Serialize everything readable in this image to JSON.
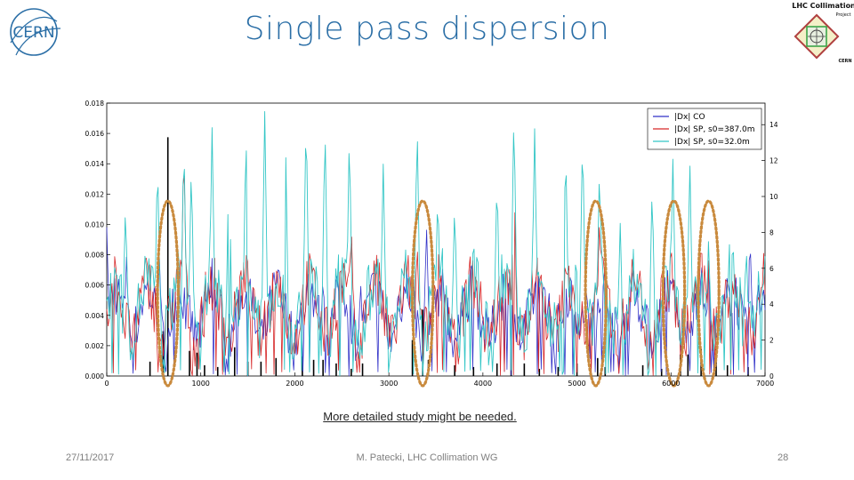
{
  "slide": {
    "title": "Single pass dispersion",
    "note": "More detailed study might be needed.",
    "footer_date": "27/11/2017",
    "footer_center": "M. Patecki, LHC Collimation WG",
    "page_number": "28",
    "logo_left_text": "CERN",
    "logo_right_line1": "LHC Collimation",
    "logo_right_line2": "Project",
    "logo_right_line3": "CERN"
  },
  "colors": {
    "title": "#2a6ea6",
    "co": "#3232c8",
    "sp387": "#d62728",
    "sp32": "#33c6c6",
    "bars": "#000000",
    "ellipse": "#c98a3d"
  },
  "chart_data": {
    "type": "line",
    "x_ticks": [
      0,
      1000,
      2000,
      3000,
      4000,
      5000,
      6000,
      7000
    ],
    "y_left_ticks": [
      "0.000",
      "0.002",
      "0.004",
      "0.006",
      "0.008",
      "0.010",
      "0.012",
      "0.014",
      "0.016",
      "0.018"
    ],
    "y_right_ticks": [
      "0",
      "2",
      "4",
      "6",
      "8",
      "10",
      "12",
      "14"
    ],
    "xlim": [
      0,
      7000
    ],
    "ylim_left": [
      0,
      0.018
    ],
    "ylim_right": [
      0,
      15.2
    ],
    "legend_position": "top-right",
    "legend": [
      "|Dx| CO",
      "|Dx| SP, s0=387.0m",
      "|Dx| SP, s0=32.0m"
    ],
    "peaks_sp32": [
      [
        200,
        9.5
      ],
      [
        540,
        12.2
      ],
      [
        820,
        13.2
      ],
      [
        900,
        11.7
      ],
      [
        1120,
        13.6
      ],
      [
        1300,
        12.6
      ],
      [
        1480,
        13.8
      ],
      [
        1680,
        14.6
      ],
      [
        1900,
        13.4
      ],
      [
        2120,
        14.7
      ],
      [
        2320,
        14.1
      ],
      [
        2580,
        13.6
      ],
      [
        2940,
        11.7
      ],
      [
        3300,
        14.2
      ],
      [
        3520,
        10.5
      ],
      [
        3700,
        9.5
      ],
      [
        3900,
        8.2
      ],
      [
        4150,
        11.2
      ],
      [
        4330,
        14.9
      ],
      [
        4550,
        13.6
      ],
      [
        4880,
        13.1
      ],
      [
        5060,
        13.5
      ],
      [
        5240,
        11.7
      ],
      [
        5460,
        8.3
      ],
      [
        5800,
        10.7
      ],
      [
        6020,
        12.0
      ],
      [
        6200,
        12.0
      ],
      [
        6400,
        7.6
      ],
      [
        6620,
        7.4
      ],
      [
        6800,
        7.4
      ]
    ],
    "peaks_co": [
      [
        0,
        8.0
      ],
      [
        210,
        6.5
      ],
      [
        560,
        6.4
      ],
      [
        860,
        5.2
      ],
      [
        1120,
        6.4
      ],
      [
        1500,
        7.0
      ],
      [
        1900,
        5.0
      ],
      [
        2300,
        5.5
      ],
      [
        2700,
        5.0
      ],
      [
        3100,
        5.0
      ],
      [
        3400,
        8.3
      ],
      [
        3800,
        5.5
      ],
      [
        4300,
        5.6
      ],
      [
        4700,
        5.0
      ],
      [
        5100,
        5.3
      ],
      [
        5600,
        5.6
      ],
      [
        6000,
        6.0
      ],
      [
        6400,
        6.0
      ],
      [
        6840,
        7.8
      ]
    ],
    "peaks_sp387": [
      [
        820,
        13.0
      ],
      [
        2600,
        8.5
      ],
      [
        3300,
        7.5
      ],
      [
        4330,
        12.0
      ],
      [
        5240,
        9.0
      ],
      [
        6000,
        8.0
      ],
      [
        6400,
        6.5
      ]
    ],
    "bars": [
      [
        650,
        13.3
      ],
      [
        600,
        2.5
      ],
      [
        460,
        0.8
      ],
      [
        880,
        1.4
      ],
      [
        960,
        1.3
      ],
      [
        1040,
        0.6
      ],
      [
        1180,
        0.5
      ],
      [
        1360,
        1.6
      ],
      [
        1500,
        0.8
      ],
      [
        1640,
        0.8
      ],
      [
        1800,
        1.0
      ],
      [
        2080,
        1.1
      ],
      [
        2200,
        0.9
      ],
      [
        2300,
        0.9
      ],
      [
        2440,
        0.7
      ],
      [
        2600,
        0.4
      ],
      [
        2720,
        0.7
      ],
      [
        3250,
        2.0
      ],
      [
        3360,
        3.7
      ],
      [
        3420,
        0.9
      ],
      [
        3700,
        0.6
      ],
      [
        3900,
        0.5
      ],
      [
        4150,
        0.7
      ],
      [
        4300,
        2.0
      ],
      [
        4440,
        0.7
      ],
      [
        4600,
        0.4
      ],
      [
        4800,
        0.5
      ],
      [
        5000,
        0.7
      ],
      [
        5220,
        1.0
      ],
      [
        5300,
        0.5
      ],
      [
        5700,
        0.6
      ],
      [
        5900,
        0.4
      ],
      [
        6100,
        1.2
      ],
      [
        6180,
        1.2
      ],
      [
        6320,
        1.5
      ],
      [
        6480,
        1.5
      ],
      [
        6600,
        0.6
      ],
      [
        6820,
        0.5
      ]
    ],
    "highlight_ellipses": [
      {
        "x_center": 650,
        "x_halfwidth": 110
      },
      {
        "x_center": 3360,
        "x_halfwidth": 110
      },
      {
        "x_center": 5200,
        "x_halfwidth": 110
      },
      {
        "x_center": 6030,
        "x_halfwidth": 115
      },
      {
        "x_center": 6400,
        "x_halfwidth": 110
      }
    ]
  }
}
